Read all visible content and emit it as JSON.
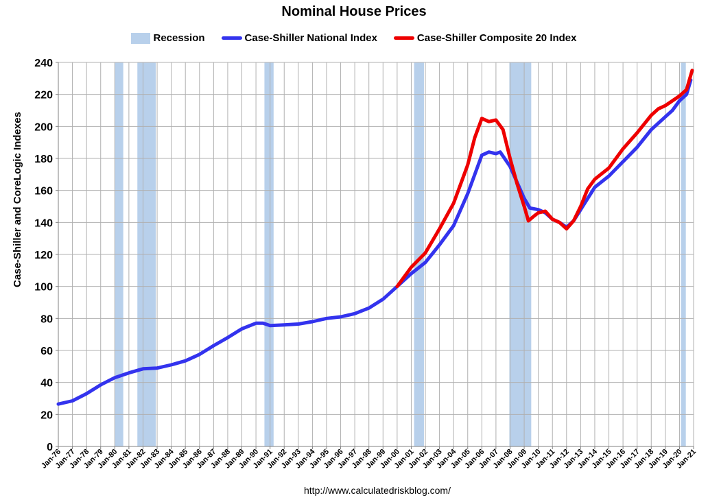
{
  "colors": {
    "recession": "#b8d0eb",
    "national": "#3333ee",
    "composite": "#ee0000",
    "grid": "#b0b0b0",
    "axis": "#808080"
  },
  "chart_data": {
    "type": "line",
    "title": "Nominal House Prices",
    "ylabel": "Case-Shiller and CoreLogic Indexes",
    "xlabel": "",
    "source": "http://www.calculatedriskblog.com/",
    "ylim": [
      0,
      240
    ],
    "xlim": [
      1976,
      2021
    ],
    "yticks": [
      0,
      20,
      40,
      60,
      80,
      100,
      120,
      140,
      160,
      180,
      200,
      220,
      240
    ],
    "xticks": [
      "Jan-76",
      "Jan-77",
      "Jan-78",
      "Jan-79",
      "Jan-80",
      "Jan-81",
      "Jan-82",
      "Jan-83",
      "Jan-84",
      "Jan-85",
      "Jan-86",
      "Jan-87",
      "Jan-88",
      "Jan-89",
      "Jan-90",
      "Jan-91",
      "Jan-92",
      "Jan-93",
      "Jan-94",
      "Jan-95",
      "Jan-96",
      "Jan-97",
      "Jan-98",
      "Jan-99",
      "Jan-00",
      "Jan-01",
      "Jan-02",
      "Jan-03",
      "Jan-04",
      "Jan-05",
      "Jan-06",
      "Jan-07",
      "Jan-08",
      "Jan-09",
      "Jan-10",
      "Jan-11",
      "Jan-12",
      "Jan-13",
      "Jan-14",
      "Jan-15",
      "Jan-16",
      "Jan-17",
      "Jan-18",
      "Jan-19",
      "Jan-20",
      "Jan-21"
    ],
    "grid": true,
    "legend_position": "top-center",
    "recessions": [
      {
        "start": 1980.0,
        "end": 1980.6
      },
      {
        "start": 1981.6,
        "end": 1982.9
      },
      {
        "start": 1990.6,
        "end": 1991.25
      },
      {
        "start": 2001.2,
        "end": 2001.9
      },
      {
        "start": 2007.95,
        "end": 2009.5
      },
      {
        "start": 2020.1,
        "end": 2020.45
      }
    ],
    "series": [
      {
        "name": "Case-Shiller National Index",
        "color": "#3333ee",
        "points": [
          [
            1976.0,
            26.5
          ],
          [
            1977.0,
            28.5
          ],
          [
            1978.0,
            33
          ],
          [
            1979.0,
            38.5
          ],
          [
            1980.0,
            43
          ],
          [
            1981.0,
            46
          ],
          [
            1982.0,
            48.5
          ],
          [
            1983.0,
            49
          ],
          [
            1984.0,
            51
          ],
          [
            1985.0,
            53.5
          ],
          [
            1986.0,
            57.5
          ],
          [
            1987.0,
            63
          ],
          [
            1988.0,
            68
          ],
          [
            1989.0,
            73.5
          ],
          [
            1990.0,
            77
          ],
          [
            1990.5,
            77
          ],
          [
            1991.0,
            75.5
          ],
          [
            1992.0,
            76
          ],
          [
            1993.0,
            76.5
          ],
          [
            1994.0,
            78
          ],
          [
            1995.0,
            80
          ],
          [
            1996.0,
            81
          ],
          [
            1997.0,
            83
          ],
          [
            1998.0,
            86.5
          ],
          [
            1999.0,
            92
          ],
          [
            2000.0,
            100
          ],
          [
            2001.0,
            108
          ],
          [
            2002.0,
            115
          ],
          [
            2003.0,
            126
          ],
          [
            2004.0,
            138
          ],
          [
            2005.0,
            158
          ],
          [
            2006.0,
            182
          ],
          [
            2006.5,
            184
          ],
          [
            2007.0,
            183
          ],
          [
            2007.3,
            184
          ],
          [
            2008.0,
            175
          ],
          [
            2008.5,
            165
          ],
          [
            2009.0,
            155
          ],
          [
            2009.4,
            149
          ],
          [
            2010.0,
            148
          ],
          [
            2010.5,
            146
          ],
          [
            2011.0,
            142
          ],
          [
            2011.5,
            140
          ],
          [
            2012.0,
            137
          ],
          [
            2012.5,
            141
          ],
          [
            2013.0,
            148
          ],
          [
            2013.5,
            155
          ],
          [
            2014.0,
            162
          ],
          [
            2015.0,
            169
          ],
          [
            2016.0,
            178
          ],
          [
            2017.0,
            187
          ],
          [
            2018.0,
            198
          ],
          [
            2019.0,
            206
          ],
          [
            2019.5,
            210
          ],
          [
            2020.0,
            216
          ],
          [
            2020.5,
            220
          ],
          [
            2020.8,
            229
          ]
        ]
      },
      {
        "name": "Case-Shiller Composite 20 Index",
        "color": "#ee0000",
        "points": [
          [
            2000.0,
            100
          ],
          [
            2001.0,
            112
          ],
          [
            2002.0,
            121
          ],
          [
            2003.0,
            136
          ],
          [
            2004.0,
            152
          ],
          [
            2005.0,
            176
          ],
          [
            2005.5,
            193
          ],
          [
            2006.0,
            205
          ],
          [
            2006.5,
            203
          ],
          [
            2007.0,
            204
          ],
          [
            2007.5,
            198
          ],
          [
            2008.0,
            180
          ],
          [
            2008.5,
            164
          ],
          [
            2009.0,
            150
          ],
          [
            2009.3,
            141
          ],
          [
            2009.7,
            144
          ],
          [
            2010.0,
            146
          ],
          [
            2010.5,
            147
          ],
          [
            2011.0,
            142
          ],
          [
            2011.5,
            140
          ],
          [
            2012.0,
            136
          ],
          [
            2012.5,
            141
          ],
          [
            2013.0,
            150
          ],
          [
            2013.5,
            161
          ],
          [
            2014.0,
            167
          ],
          [
            2015.0,
            174
          ],
          [
            2016.0,
            186
          ],
          [
            2017.0,
            196
          ],
          [
            2018.0,
            207
          ],
          [
            2018.5,
            211
          ],
          [
            2019.0,
            213
          ],
          [
            2020.0,
            219
          ],
          [
            2020.5,
            223
          ],
          [
            2020.9,
            235
          ]
        ]
      }
    ],
    "legend": [
      {
        "label": "Recession",
        "kind": "box",
        "color": "#b8d0eb"
      },
      {
        "label": "Case-Shiller National Index",
        "kind": "line",
        "color": "#3333ee"
      },
      {
        "label": "Case-Shiller Composite 20 Index",
        "kind": "line",
        "color": "#ee0000"
      }
    ]
  }
}
